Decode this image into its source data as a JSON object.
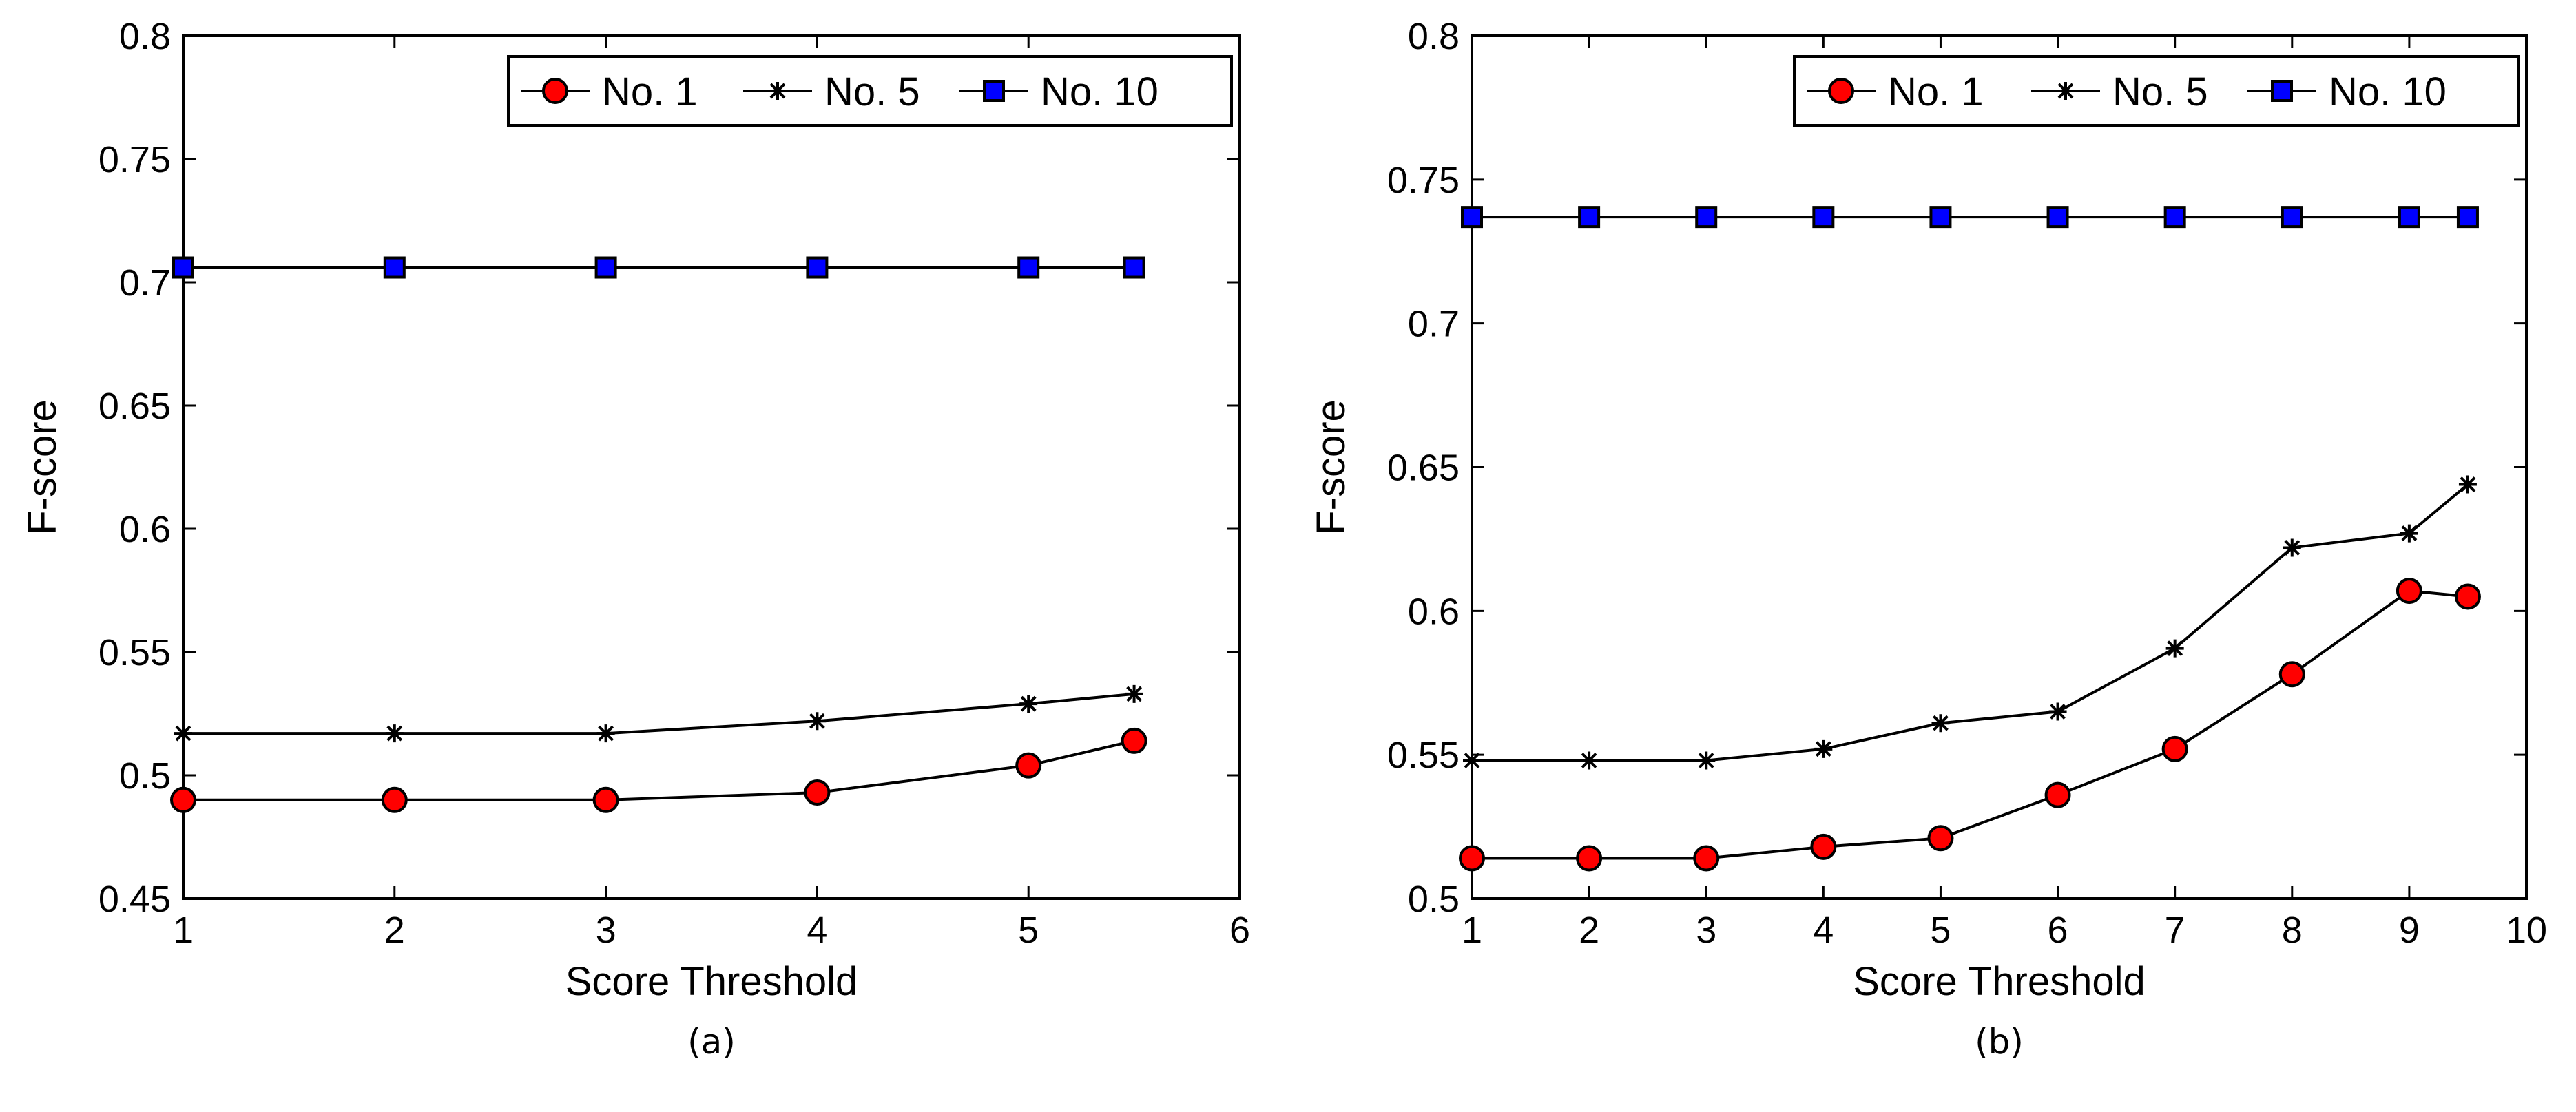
{
  "chart_data": [
    {
      "type": "line",
      "caption": "(a)",
      "xlabel": "Score Threshold",
      "ylabel": "F-score",
      "xlim": [
        1,
        6
      ],
      "ylim": [
        0.45,
        0.8
      ],
      "xticks": [
        1,
        2,
        3,
        4,
        5,
        6
      ],
      "xtick_labels": [
        "1",
        "2",
        "3",
        "4",
        "5",
        "6"
      ],
      "yticks": [
        0.45,
        0.5,
        0.55,
        0.6,
        0.65,
        0.7,
        0.75,
        0.8
      ],
      "ytick_labels": [
        "0.45",
        "0.5",
        "0.55",
        "0.6",
        "0.65",
        "0.7",
        "0.75",
        "0.8"
      ],
      "legend_position": "top-right",
      "x": [
        1,
        2,
        3,
        4,
        5,
        5.5
      ],
      "series": [
        {
          "name": "No. 1",
          "marker": "circle",
          "color": "#ff0000",
          "values": [
            0.49,
            0.49,
            0.49,
            0.493,
            0.504,
            0.514
          ]
        },
        {
          "name": "No. 5",
          "marker": "asterisk",
          "color": "#000000",
          "values": [
            0.517,
            0.517,
            0.517,
            0.522,
            0.529,
            0.533
          ]
        },
        {
          "name": "No. 10",
          "marker": "square",
          "color": "#0000ff",
          "values": [
            0.706,
            0.706,
            0.706,
            0.706,
            0.706,
            0.706
          ]
        }
      ]
    },
    {
      "type": "line",
      "caption": "(b)",
      "xlabel": "Score Threshold",
      "ylabel": "F-score",
      "xlim": [
        1,
        10
      ],
      "ylim": [
        0.5,
        0.8
      ],
      "xticks": [
        1,
        2,
        3,
        4,
        5,
        6,
        7,
        8,
        9,
        10
      ],
      "xtick_labels": [
        "1",
        "2",
        "3",
        "4",
        "5",
        "6",
        "7",
        "8",
        "9",
        "10"
      ],
      "yticks": [
        0.5,
        0.55,
        0.6,
        0.65,
        0.7,
        0.75,
        0.8
      ],
      "ytick_labels": [
        "0.5",
        "0.55",
        "0.6",
        "0.65",
        "0.7",
        "0.75",
        "0.8"
      ],
      "legend_position": "top-right",
      "x": [
        1,
        2,
        3,
        4,
        5,
        6,
        7,
        8,
        9,
        9.5
      ],
      "series": [
        {
          "name": "No. 1",
          "marker": "circle",
          "color": "#ff0000",
          "values": [
            0.514,
            0.514,
            0.514,
            0.518,
            0.521,
            0.536,
            0.552,
            0.578,
            0.607,
            0.605
          ]
        },
        {
          "name": "No. 5",
          "marker": "asterisk",
          "color": "#000000",
          "values": [
            0.548,
            0.548,
            0.548,
            0.552,
            0.561,
            0.565,
            0.587,
            0.622,
            0.627,
            0.644
          ]
        },
        {
          "name": "No. 10",
          "marker": "square",
          "color": "#0000ff",
          "values": [
            0.737,
            0.737,
            0.737,
            0.737,
            0.737,
            0.737,
            0.737,
            0.737,
            0.737,
            0.737
          ]
        }
      ]
    }
  ]
}
